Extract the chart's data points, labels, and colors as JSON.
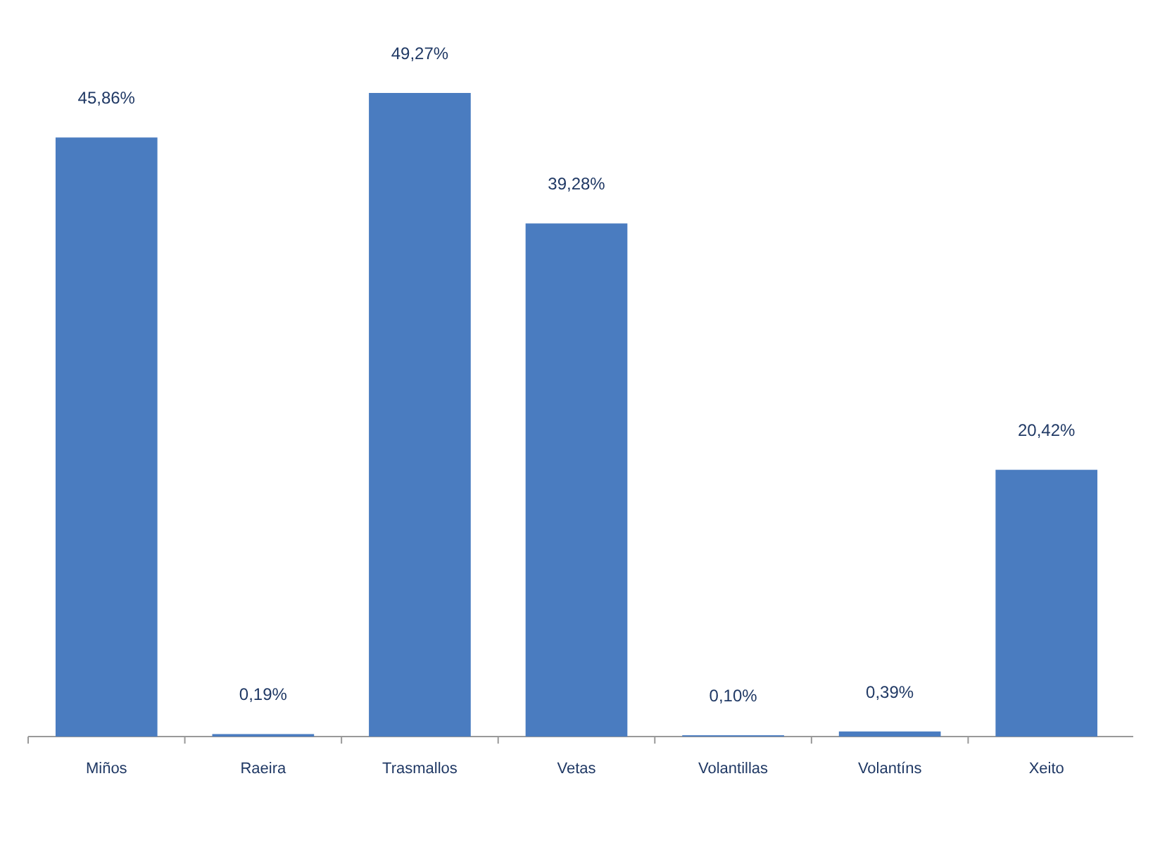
{
  "chart_data": {
    "type": "bar",
    "categories": [
      "Miños",
      "Raeira",
      "Trasmallos",
      "Vetas",
      "Volantillas",
      "Volantíns",
      "Xeito"
    ],
    "values": [
      45.86,
      0.19,
      49.27,
      39.28,
      0.1,
      0.39,
      20.42
    ],
    "value_labels": [
      "45,86%",
      "0,19%",
      "49,27%",
      "39,28%",
      "0,10%",
      "0,39%",
      "20,42%"
    ],
    "color": "#4a7cc0"
  }
}
